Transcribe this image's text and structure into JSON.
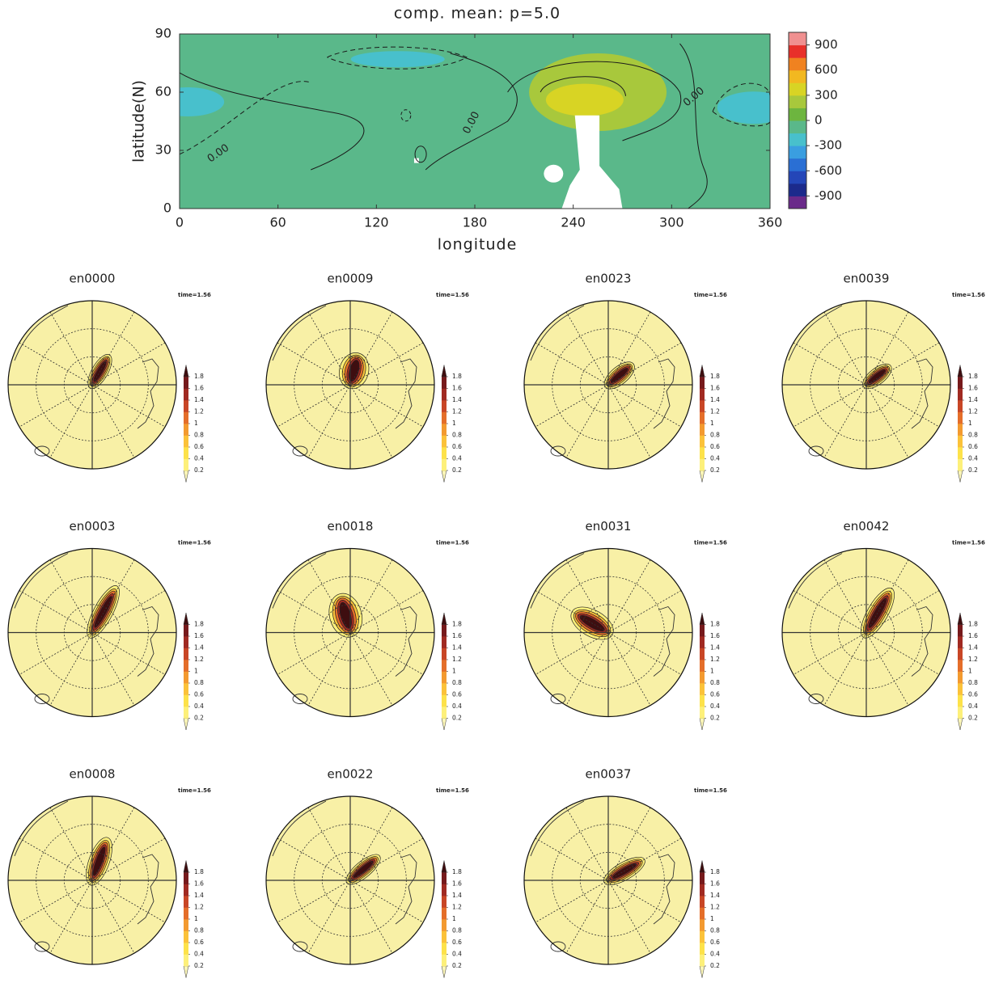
{
  "chart_data": [
    {
      "type": "contour",
      "title": "comp. mean: p=5.0",
      "x_label": "longitude",
      "y_label": "latitude(N)",
      "xlim": [
        0,
        360
      ],
      "xticks": [
        0,
        60,
        120,
        180,
        240,
        300,
        360
      ],
      "ylim": [
        0,
        90
      ],
      "yticks": [
        0,
        30,
        60,
        90
      ],
      "contour_labels": [
        "0.00",
        "0.00",
        "0.00"
      ],
      "colorbar": {
        "lim": [
          -1050,
          1050
        ],
        "ticks": [
          900,
          600,
          300,
          0,
          -300,
          -600,
          -900
        ],
        "colors": [
          "#6a2a8a",
          "#1c2a8c",
          "#2446b8",
          "#2a6fd4",
          "#3a9ee0",
          "#48c0cc",
          "#5ab88a",
          "#6db53f",
          "#a8c83c",
          "#d8d424",
          "#f2b820",
          "#f08220",
          "#e8302a",
          "#f09090"
        ]
      }
    },
    {
      "type": "polar",
      "title": "en0000",
      "annotation": "time=1.56"
    },
    {
      "type": "polar",
      "title": "en0009",
      "annotation": "time=1.56"
    },
    {
      "type": "polar",
      "title": "en0023",
      "annotation": "time=1.56"
    },
    {
      "type": "polar",
      "title": "en0039",
      "annotation": "time=1.56"
    },
    {
      "type": "polar",
      "title": "en0003",
      "annotation": "time=1.56"
    },
    {
      "type": "polar",
      "title": "en0018",
      "annotation": "time=1.56"
    },
    {
      "type": "polar",
      "title": "en0031",
      "annotation": "time=1.56"
    },
    {
      "type": "polar",
      "title": "en0042",
      "annotation": "time=1.56"
    },
    {
      "type": "polar",
      "title": "en0008",
      "annotation": "time=1.56"
    },
    {
      "type": "polar",
      "title": "en0022",
      "annotation": "time=1.56"
    },
    {
      "type": "polar",
      "title": "en0037",
      "annotation": "time=1.56"
    },
    {
      "colorbar": {
        "lim": [
          0,
          2
        ],
        "ticks": [
          1.8,
          1.6,
          1.4,
          1.2,
          1,
          0.8,
          0.6,
          0.4,
          0.2
        ],
        "colors": [
          "#fbf6b8",
          "#fdf07a",
          "#fde24a",
          "#fbc23a",
          "#f39a30",
          "#e46e2a",
          "#c84626",
          "#a02a22",
          "#761a1c",
          "#3e0e10"
        ]
      }
    }
  ]
}
